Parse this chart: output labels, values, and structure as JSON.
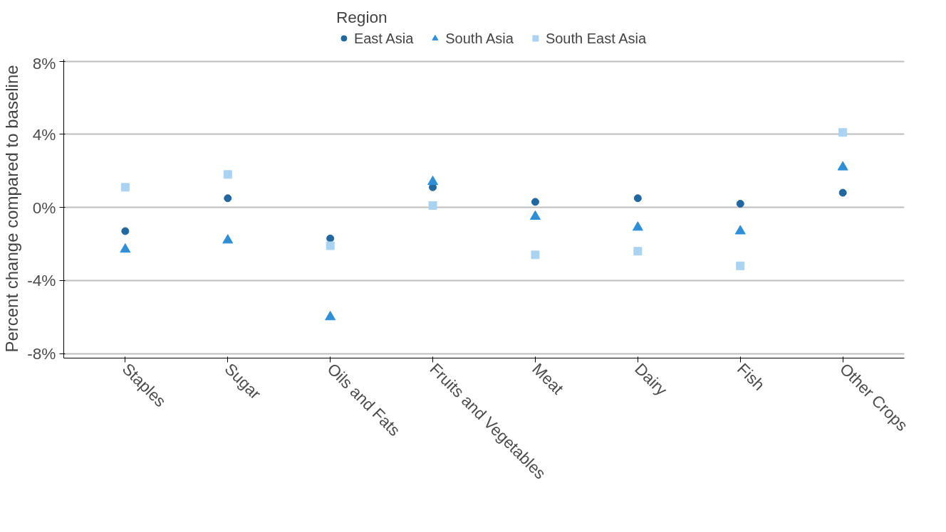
{
  "chart_data": {
    "type": "scatter",
    "ylabel": "Percent change compared to baseline",
    "legend_title": "Region",
    "legend": "top",
    "grid": "y",
    "categories": [
      "Staples",
      "Sugar",
      "Oils and Fats",
      "Fruits and Vegetables",
      "Meat",
      "Dairy",
      "Fish",
      "Other Crops"
    ],
    "ylim": [
      -8.25,
      8.1
    ],
    "yticks": [
      {
        "value": -8,
        "label": "-8%"
      },
      {
        "value": -4,
        "label": "-4%"
      },
      {
        "value": 0,
        "label": "0%"
      },
      {
        "value": 4,
        "label": "4%"
      },
      {
        "value": 8,
        "label": "8%"
      }
    ],
    "series": [
      {
        "name": "East Asia",
        "color": "#22679f",
        "marker": "circle",
        "values": [
          -1.3,
          0.5,
          -1.7,
          1.1,
          0.3,
          0.5,
          0.2,
          0.8
        ]
      },
      {
        "name": "South Asia",
        "color": "#2f8fd6",
        "marker": "triangle",
        "values": [
          -2.3,
          -1.8,
          -6.0,
          1.4,
          -0.5,
          -1.1,
          -1.3,
          2.2
        ]
      },
      {
        "name": "South East Asia",
        "color": "#a9d3f0",
        "marker": "square",
        "values": [
          1.1,
          1.8,
          -2.1,
          0.1,
          -2.6,
          -2.4,
          -3.2,
          4.1
        ]
      }
    ]
  }
}
